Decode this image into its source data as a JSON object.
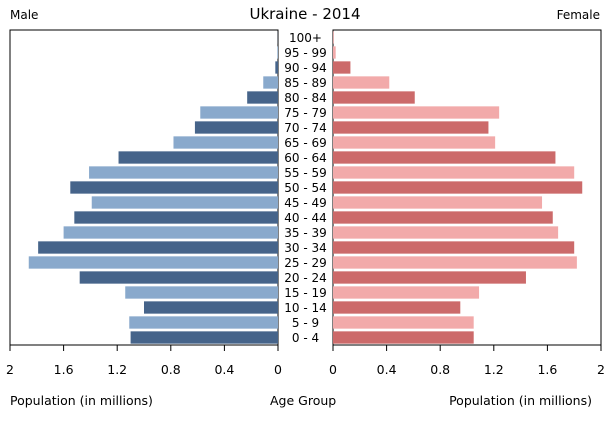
{
  "header": {
    "title": "Ukraine - 2014",
    "male_label": "Male",
    "female_label": "Female"
  },
  "footer": {
    "left_axis_label": "Population (in millions)",
    "center_axis_label": "Age Group",
    "right_axis_label": "Population (in millions)"
  },
  "chart_data": {
    "type": "bar",
    "subtype": "population-pyramid",
    "title": "Ukraine - 2014",
    "xlabel": "Population (in millions)",
    "ylabel": "Age Group",
    "xlim": [
      0,
      2
    ],
    "categories": [
      "100+",
      "95 - 99",
      "90 - 94",
      "85 - 89",
      "80 - 84",
      "75 - 79",
      "70 - 74",
      "65 - 69",
      "60 - 64",
      "55 - 59",
      "50 - 54",
      "45 - 49",
      "40 - 44",
      "35 - 39",
      "30 - 34",
      "25 - 29",
      "20 - 24",
      "15 - 19",
      "10 - 14",
      "5 - 9",
      "0 - 4"
    ],
    "series": [
      {
        "name": "Male",
        "values": [
          0.001,
          0.005,
          0.02,
          0.11,
          0.23,
          0.58,
          0.62,
          0.78,
          1.19,
          1.41,
          1.55,
          1.39,
          1.52,
          1.6,
          1.79,
          1.86,
          1.48,
          1.14,
          1.0,
          1.11,
          1.1
        ]
      },
      {
        "name": "Female",
        "values": [
          0.004,
          0.02,
          0.13,
          0.42,
          0.61,
          1.24,
          1.16,
          1.21,
          1.66,
          1.8,
          1.86,
          1.56,
          1.64,
          1.68,
          1.8,
          1.82,
          1.44,
          1.09,
          0.95,
          1.05,
          1.05
        ]
      }
    ],
    "ticks_left": [
      "2",
      "1.6",
      "1.2",
      "0.8",
      "0.4",
      "0"
    ],
    "ticks_right": [
      "0",
      "0.4",
      "0.8",
      "1.2",
      "1.6",
      "2"
    ],
    "colors": {
      "male_dark": "#46648a",
      "male_light": "#89a9cc",
      "female_dark": "#cc6a6a",
      "female_light": "#f2aaaa"
    }
  }
}
